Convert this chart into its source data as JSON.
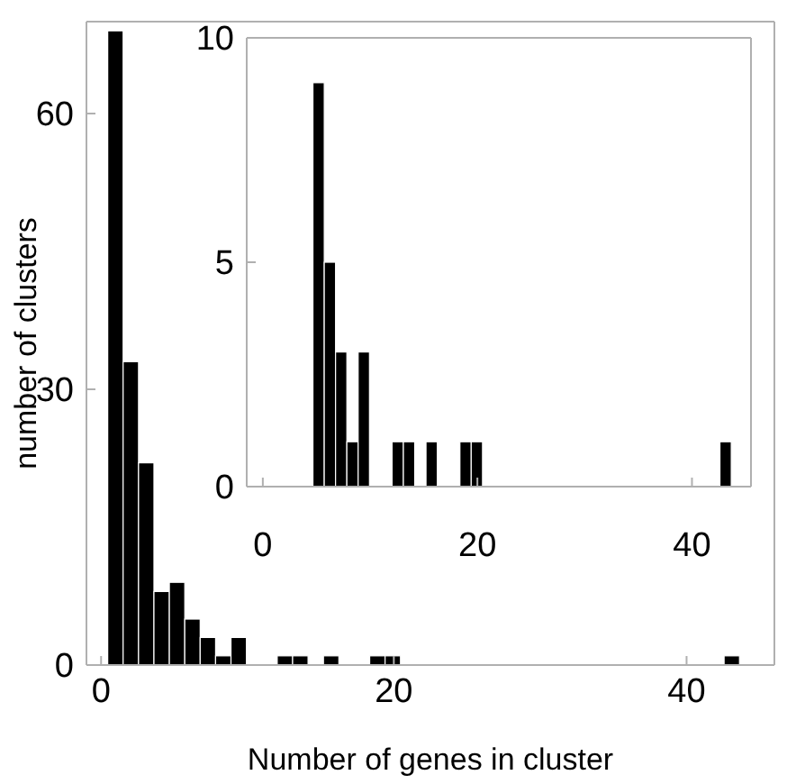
{
  "chart_data": [
    {
      "type": "histogram",
      "xlabel": "Number of genes in cluster",
      "ylabel": "number of clusters",
      "color": "#000000",
      "bins": [
        0.45,
        1.5,
        2.55,
        3.6,
        4.65,
        5.7,
        6.75,
        7.8,
        8.85,
        9.9,
        10.95,
        12,
        13.05,
        14.1,
        15.15,
        16.2,
        17.25,
        18.3,
        19.35,
        20.4,
        21.45,
        22.5,
        23.55,
        24.6,
        25.65,
        26.7,
        27.75,
        28.8,
        29.85,
        30.9,
        31.95,
        33,
        34.05,
        35.1,
        36.15,
        37.2,
        38.25,
        39.3,
        40.35,
        41.4,
        42.45,
        43.5
      ],
      "values": [
        69,
        33,
        22,
        8,
        9,
        5,
        3,
        1,
        3,
        0,
        0,
        1,
        1,
        0,
        1,
        0,
        0,
        1,
        1,
        0,
        0,
        0,
        0,
        0,
        0,
        0,
        0,
        0,
        0,
        0,
        0,
        0,
        0,
        0,
        0,
        0,
        0,
        0,
        0,
        0,
        1
      ],
      "xlim": [
        -1,
        46
      ],
      "ylim": [
        0,
        70
      ],
      "xticks": [
        0,
        20,
        40
      ],
      "yticks": [
        0,
        30,
        60
      ]
    },
    {
      "type": "histogram",
      "color": "#000000",
      "bins": [
        0.45,
        1.5,
        2.55,
        3.6,
        4.65,
        5.7,
        6.75,
        7.8,
        8.85,
        9.9,
        10.95,
        12,
        13.05,
        14.1,
        15.15,
        16.2,
        17.25,
        18.3,
        19.35,
        20.4,
        21.45,
        22.5,
        23.55,
        24.6,
        25.65,
        26.7,
        27.75,
        28.8,
        29.85,
        30.9,
        31.95,
        33,
        34.05,
        35.1,
        36.15,
        37.2,
        38.25,
        39.3,
        40.35,
        41.4,
        42.45,
        43.5
      ],
      "values": [
        0,
        0,
        0,
        0,
        9,
        5,
        3,
        1,
        3,
        0,
        0,
        1,
        1,
        0,
        1,
        0,
        0,
        1,
        1,
        0,
        0,
        0,
        0,
        0,
        0,
        0,
        0,
        0,
        0,
        0,
        0,
        0,
        0,
        0,
        0,
        0,
        0,
        0,
        0,
        0,
        1
      ],
      "xlim": [
        -1.5,
        45.5
      ],
      "ylim": [
        0,
        10
      ],
      "xticks": [
        0,
        20,
        40
      ],
      "yticks": [
        0,
        5,
        10
      ]
    }
  ]
}
